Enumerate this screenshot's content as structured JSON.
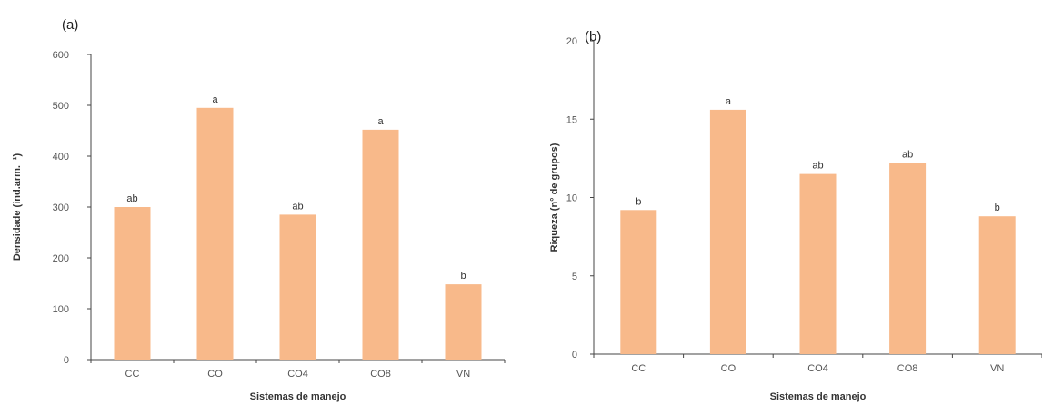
{
  "chart_data": [
    {
      "type": "bar",
      "panel_label": "(a)",
      "categories": [
        "CC",
        "CO",
        "CO4",
        "CO8",
        "VN"
      ],
      "values": [
        300,
        495,
        285,
        452,
        148
      ],
      "bar_labels": [
        "ab",
        "a",
        "ab",
        "a",
        "b"
      ],
      "xlabel": "Sistemas de manejo",
      "ylabel": "Densidade (ind.arm.⁻¹)",
      "ylim": [
        0,
        600
      ],
      "yticks": [
        0,
        100,
        200,
        300,
        400,
        500,
        600
      ],
      "bar_color": "#f8b98a",
      "grid": false
    },
    {
      "type": "bar",
      "panel_label": "(b)",
      "categories": [
        "CC",
        "CO",
        "CO4",
        "CO8",
        "VN"
      ],
      "values": [
        9.2,
        15.6,
        11.5,
        12.2,
        8.8
      ],
      "bar_labels": [
        "b",
        "a",
        "ab",
        "ab",
        "b"
      ],
      "xlabel": "Sistemas de manejo",
      "ylabel": "Riqueza (n° de grupos)",
      "ylim": [
        0,
        20
      ],
      "yticks": [
        0,
        5,
        10,
        15,
        20
      ],
      "bar_color": "#f8b98a",
      "grid": false
    }
  ]
}
